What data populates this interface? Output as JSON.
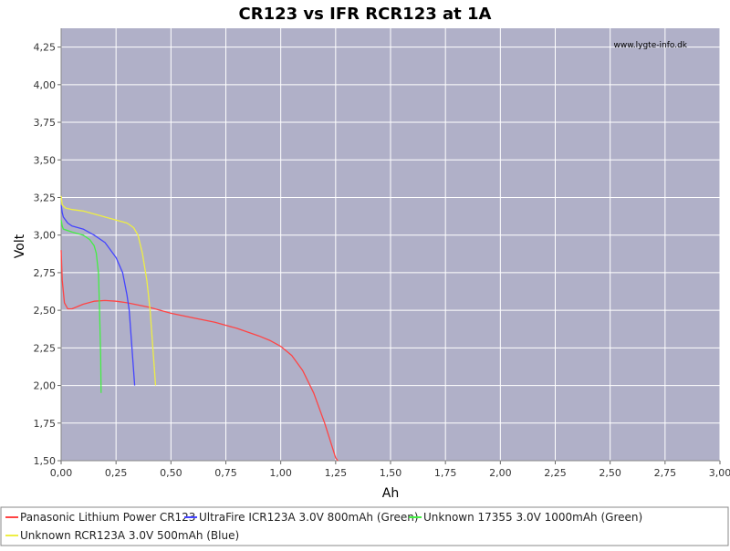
{
  "chart_data": {
    "type": "line",
    "title": "CR123 vs IFR RCR123 at 1A",
    "xlabel": "Ah",
    "ylabel": "Volt",
    "xlim": [
      0,
      3.0
    ],
    "ylim": [
      1.5,
      4.375
    ],
    "x_ticks": [
      "0,00",
      "0,25",
      "0,50",
      "0,75",
      "1,00",
      "1,25",
      "1,50",
      "1,75",
      "2,00",
      "2,25",
      "2,50",
      "2,75",
      "3,00"
    ],
    "y_ticks": [
      "1,50",
      "1,75",
      "2,00",
      "2,25",
      "2,50",
      "2,75",
      "3,00",
      "3,25",
      "3,50",
      "3,75",
      "4,00",
      "4,25"
    ],
    "grid": true,
    "watermark": "www.lygte-info.dk",
    "legend_position": "bottom",
    "series": [
      {
        "name": "Panasonic Lithium Power CR123",
        "color": "#ff4444",
        "points": [
          [
            0,
            2.9
          ],
          [
            0.005,
            2.7
          ],
          [
            0.015,
            2.55
          ],
          [
            0.03,
            2.51
          ],
          [
            0.05,
            2.51
          ],
          [
            0.1,
            2.54
          ],
          [
            0.15,
            2.56
          ],
          [
            0.2,
            2.565
          ],
          [
            0.25,
            2.56
          ],
          [
            0.3,
            2.55
          ],
          [
            0.4,
            2.52
          ],
          [
            0.5,
            2.48
          ],
          [
            0.6,
            2.45
          ],
          [
            0.7,
            2.42
          ],
          [
            0.8,
            2.38
          ],
          [
            0.9,
            2.33
          ],
          [
            0.95,
            2.3
          ],
          [
            1.0,
            2.26
          ],
          [
            1.05,
            2.2
          ],
          [
            1.1,
            2.1
          ],
          [
            1.15,
            1.95
          ],
          [
            1.2,
            1.75
          ],
          [
            1.25,
            1.52
          ],
          [
            1.26,
            1.5
          ]
        ]
      },
      {
        "name": "UltraFire ICR123A 3.0V 800mAh (Green)",
        "color": "#4444ff",
        "points": [
          [
            0,
            3.2
          ],
          [
            0.005,
            3.15
          ],
          [
            0.01,
            3.12
          ],
          [
            0.03,
            3.08
          ],
          [
            0.05,
            3.06
          ],
          [
            0.1,
            3.04
          ],
          [
            0.15,
            3.0
          ],
          [
            0.2,
            2.95
          ],
          [
            0.25,
            2.85
          ],
          [
            0.28,
            2.75
          ],
          [
            0.3,
            2.6
          ],
          [
            0.31,
            2.5
          ],
          [
            0.32,
            2.3
          ],
          [
            0.33,
            2.1
          ],
          [
            0.335,
            2.0
          ]
        ]
      },
      {
        "name": "Unknown 17355 3.0V 1000mAh (Green)",
        "color": "#44ee44",
        "points": [
          [
            0,
            3.1
          ],
          [
            0.005,
            3.06
          ],
          [
            0.01,
            3.04
          ],
          [
            0.05,
            3.02
          ],
          [
            0.1,
            3.0
          ],
          [
            0.13,
            2.97
          ],
          [
            0.15,
            2.93
          ],
          [
            0.16,
            2.88
          ],
          [
            0.17,
            2.75
          ],
          [
            0.175,
            2.5
          ],
          [
            0.18,
            2.2
          ],
          [
            0.182,
            1.95
          ]
        ]
      },
      {
        "name": "Unknown RCR123A 3.0V 500mAh (Blue)",
        "color": "#eeee44",
        "points": [
          [
            0,
            3.26
          ],
          [
            0.005,
            3.2
          ],
          [
            0.02,
            3.18
          ],
          [
            0.05,
            3.17
          ],
          [
            0.1,
            3.16
          ],
          [
            0.2,
            3.12
          ],
          [
            0.3,
            3.08
          ],
          [
            0.33,
            3.05
          ],
          [
            0.35,
            3.0
          ],
          [
            0.37,
            2.88
          ],
          [
            0.39,
            2.7
          ],
          [
            0.405,
            2.5
          ],
          [
            0.42,
            2.2
          ],
          [
            0.43,
            2.0
          ]
        ]
      }
    ]
  }
}
